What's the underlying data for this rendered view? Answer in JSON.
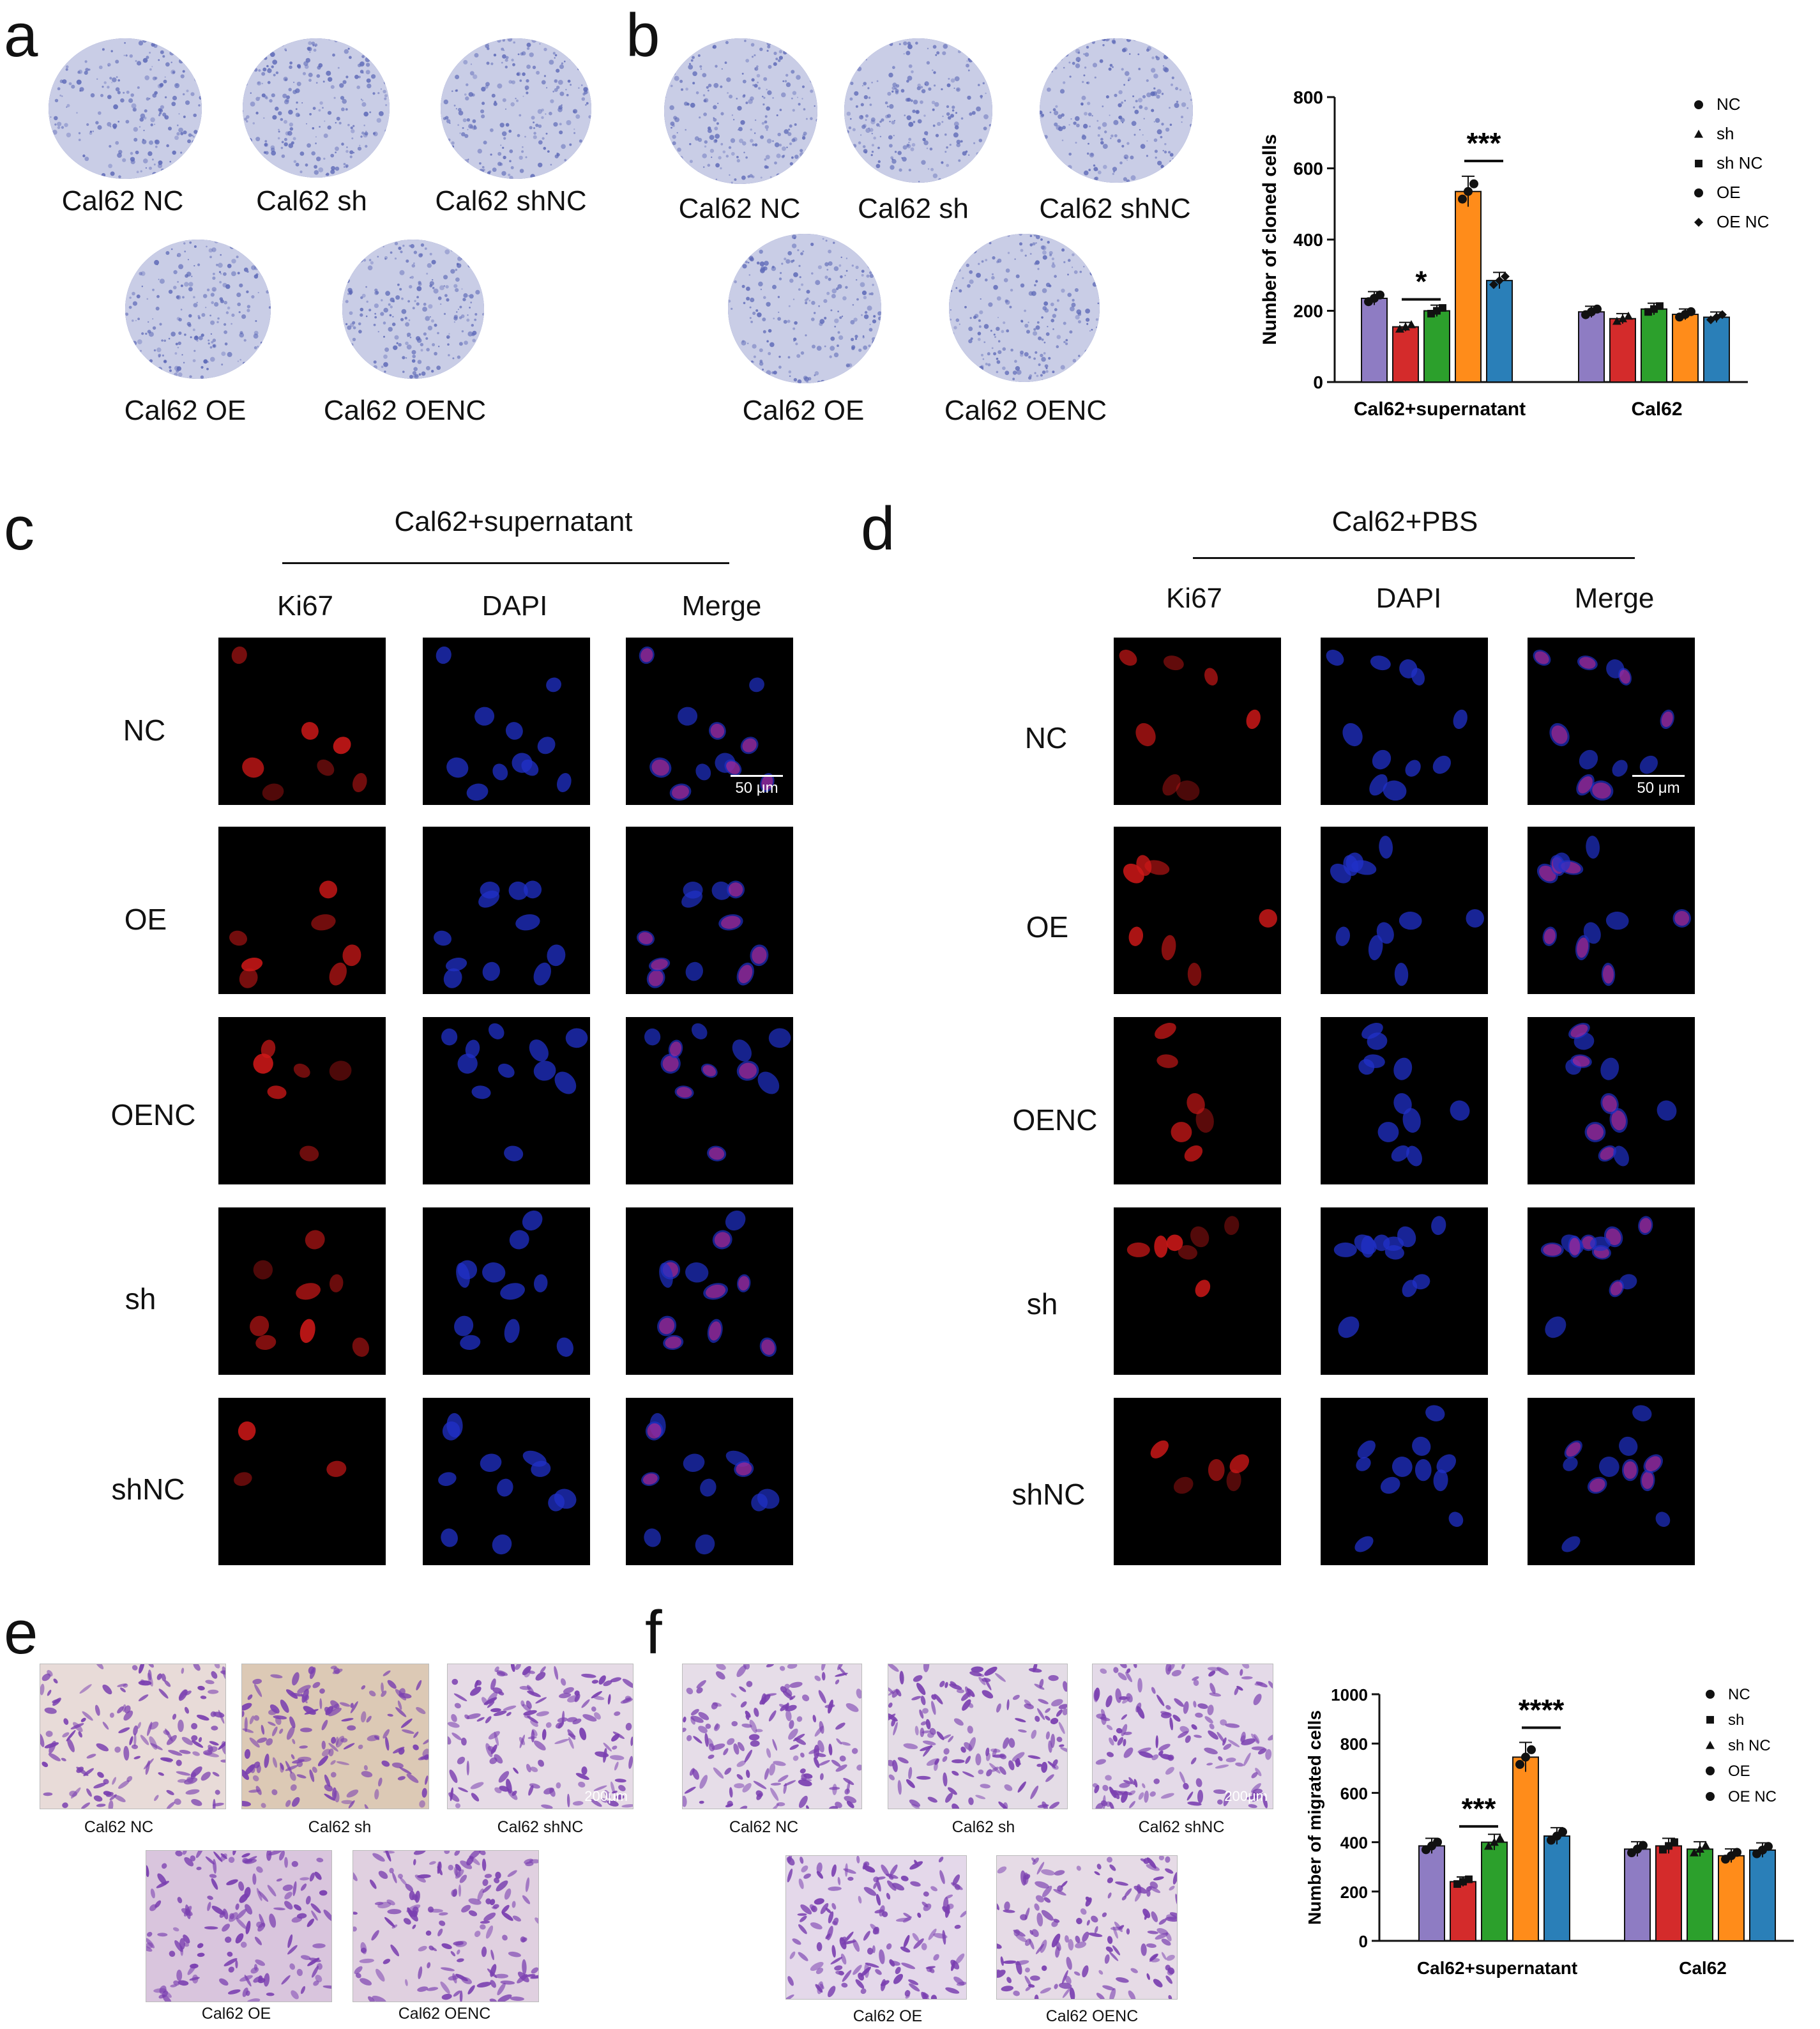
{
  "panels": {
    "a": {
      "label": "a",
      "dishes": [
        "Cal62 NC",
        "Cal62 sh",
        "Cal62 shNC",
        "Cal62 OE",
        "Cal62 OENC"
      ]
    },
    "b": {
      "label": "b",
      "dishes": [
        "Cal62 NC",
        "Cal62 sh",
        "Cal62 shNC",
        "Cal62 OE",
        "Cal62 OENC"
      ]
    },
    "c": {
      "label": "c",
      "title": "Cal62+supernatant",
      "columns": [
        "Ki67",
        "DAPI",
        "Merge"
      ],
      "rows": [
        "NC",
        "OE",
        "OENC",
        "sh",
        "shNC"
      ],
      "scale_bar": "50 μm"
    },
    "d": {
      "label": "d",
      "title": "Cal62+PBS",
      "columns": [
        "Ki67",
        "DAPI",
        "Merge"
      ],
      "rows": [
        "NC",
        "OE",
        "OENC",
        "sh",
        "shNC"
      ],
      "scale_bar": "50 μm"
    },
    "e": {
      "label": "e",
      "images": [
        "Cal62 NC",
        "Cal62 sh",
        "Cal62 shNC",
        "Cal62 OE",
        "Cal62 OENC"
      ],
      "scale_bar": "200μm"
    },
    "f": {
      "label": "f",
      "images": [
        "Cal62 NC",
        "Cal62 sh",
        "Cal62 shNC",
        "Cal62 OE",
        "Cal62 OENC"
      ],
      "scale_bar": "200μm"
    }
  },
  "colors": {
    "purple": "#8e7cc3",
    "red": "#d42b2b",
    "green": "#2ca02c",
    "orange": "#ff8c1a",
    "blue": "#2a7fb8",
    "dish": "#7d86c4",
    "ki67": "#d01818",
    "dapi": "#2030c8",
    "crystal_violet": "#7a3fb0"
  },
  "chart_data": [
    {
      "type": "bar",
      "panel": "b",
      "ylabel": "Number of cloned cells",
      "ylim": [
        0,
        800
      ],
      "yticks": [
        0,
        200,
        400,
        600,
        800
      ],
      "categories": [
        "Cal62+supernatant",
        "Cal62"
      ],
      "series": [
        {
          "name": "NC",
          "marker": "circle",
          "values": [
            235,
            197
          ]
        },
        {
          "name": "sh",
          "marker": "triangle",
          "values": [
            155,
            178
          ]
        },
        {
          "name": "sh NC",
          "marker": "square",
          "values": [
            200,
            205
          ]
        },
        {
          "name": "OE",
          "marker": "circle",
          "values": [
            535,
            190
          ]
        },
        {
          "name": "OE NC",
          "marker": "diamond",
          "values": [
            285,
            182
          ]
        }
      ],
      "significance": [
        {
          "label": "*",
          "between": [
            "sh",
            "sh NC"
          ]
        },
        {
          "label": "***",
          "between": [
            "OE",
            "OE NC"
          ]
        }
      ],
      "legend": "top-right"
    },
    {
      "type": "bar",
      "panel": "f",
      "ylabel": "Number of migrated cells",
      "ylim": [
        0,
        1000
      ],
      "yticks": [
        0,
        200,
        400,
        600,
        800,
        1000
      ],
      "categories": [
        "Cal62+supernatant",
        "Cal62"
      ],
      "series": [
        {
          "name": "NC",
          "marker": "circle",
          "values": [
            385,
            372
          ]
        },
        {
          "name": "sh",
          "marker": "square",
          "values": [
            240,
            385
          ]
        },
        {
          "name": "sh NC",
          "marker": "triangle",
          "values": [
            400,
            372
          ]
        },
        {
          "name": "OE",
          "marker": "circle",
          "values": [
            745,
            345
          ]
        },
        {
          "name": "OE NC",
          "marker": "circle",
          "values": [
            425,
            368
          ]
        }
      ],
      "significance": [
        {
          "label": "***",
          "between": [
            "sh",
            "sh NC"
          ]
        },
        {
          "label": "****",
          "between": [
            "OE",
            "OE NC"
          ]
        }
      ],
      "legend": "top-right"
    }
  ]
}
